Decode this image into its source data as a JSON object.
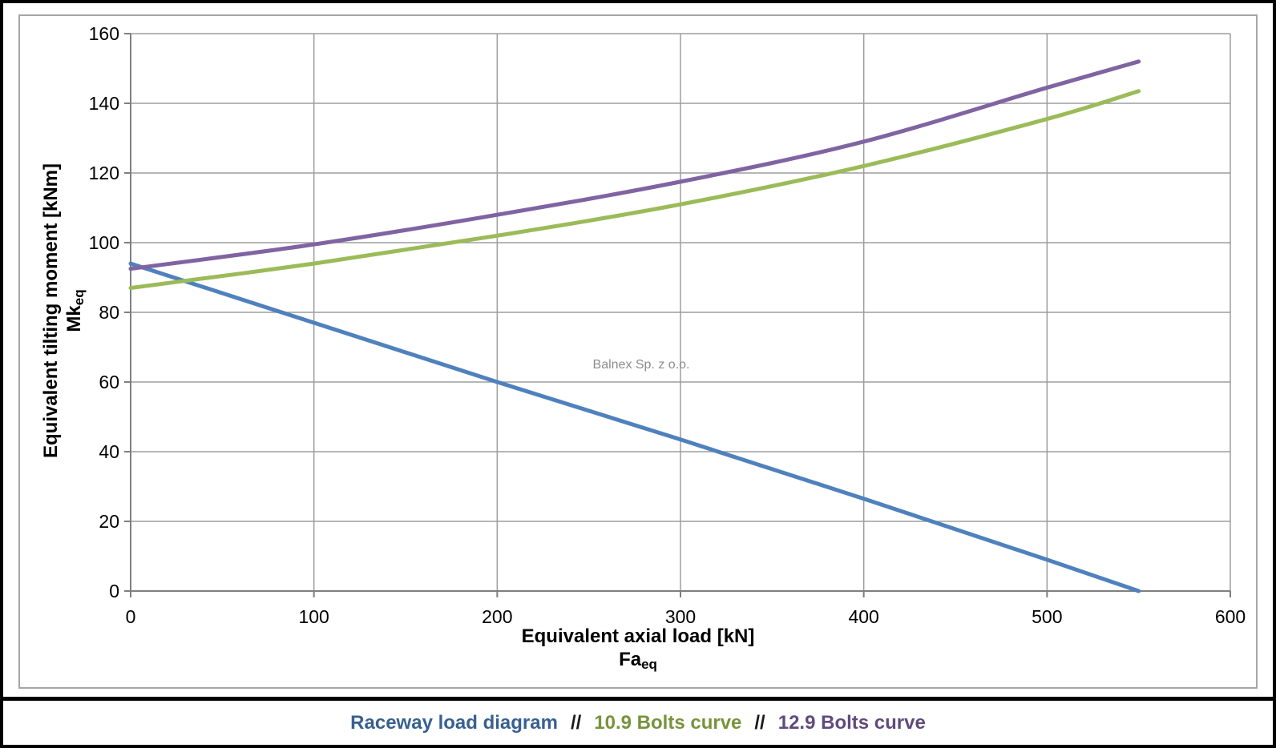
{
  "page": {
    "background": "#ffffff",
    "border_color": "#000000"
  },
  "watermark": "Balnex Sp. z o.o.",
  "legend": {
    "separator": "//",
    "items": [
      {
        "label": "Raceway load diagram",
        "color": "#376092"
      },
      {
        "label": "10.9 Bolts curve",
        "color": "#77933C"
      },
      {
        "label": "12.9 Bolts curve",
        "color": "#604A7B"
      }
    ]
  },
  "chart_data": {
    "type": "line",
    "title": "",
    "xlabel": "Equivalent axial load [kN]",
    "xlabel_symbol": "Fa",
    "xlabel_symbol_sub": "eq",
    "ylabel": "Equivalent tilting moment [kNm]",
    "ylabel_symbol": "Mk",
    "ylabel_symbol_sub": "eq",
    "xlim": [
      0,
      600
    ],
    "ylim": [
      0,
      160
    ],
    "xticks": [
      0,
      100,
      200,
      300,
      400,
      500,
      600
    ],
    "yticks": [
      0,
      20,
      40,
      60,
      80,
      100,
      120,
      140,
      160
    ],
    "grid": true,
    "grid_color": "#9d9d9d",
    "axis_color": "#7f7f7f",
    "legend_position": "bottom",
    "series": [
      {
        "name": "Raceway load diagram",
        "color": "#4F81BD",
        "smooth": false,
        "x": [
          0,
          100,
          200,
          300,
          400,
          500,
          550
        ],
        "y": [
          94,
          77,
          60,
          43.5,
          26.5,
          9,
          0
        ]
      },
      {
        "name": "10.9 Bolts curve",
        "color": "#9BBB59",
        "smooth": true,
        "x": [
          0,
          100,
          200,
          300,
          400,
          500,
          550
        ],
        "y": [
          87,
          94,
          102,
          111,
          122,
          135.5,
          143.5
        ]
      },
      {
        "name": "12.9 Bolts curve",
        "color": "#8064A2",
        "smooth": true,
        "x": [
          0,
          100,
          200,
          300,
          400,
          500,
          550
        ],
        "y": [
          92.5,
          99.5,
          108,
          117.5,
          129,
          144.5,
          152
        ]
      }
    ]
  }
}
